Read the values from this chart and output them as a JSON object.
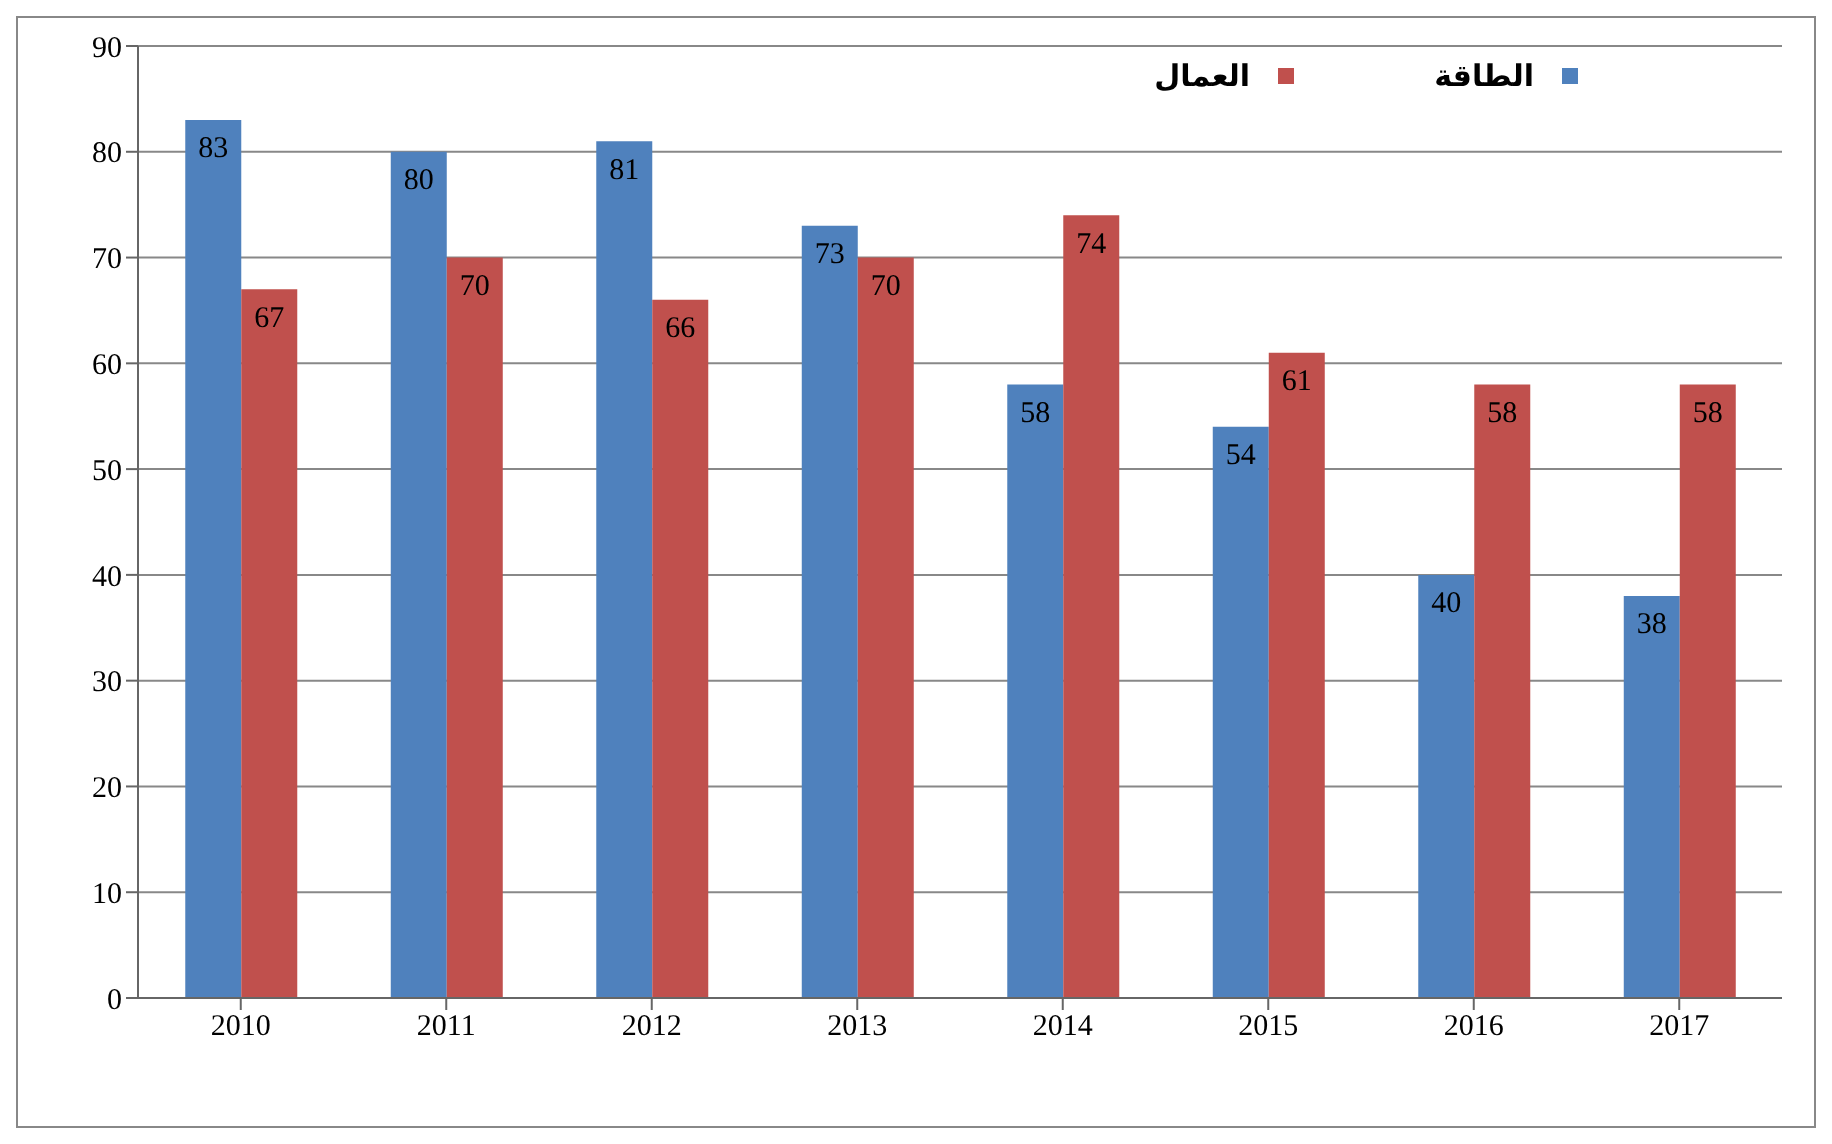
{
  "chart_data": {
    "type": "bar",
    "categories": [
      "2010",
      "2011",
      "2012",
      "2013",
      "2014",
      "2015",
      "2016",
      "2017"
    ],
    "series": [
      {
        "name": "الطاقة",
        "color": "#4f81bd",
        "values": [
          83,
          80,
          81,
          73,
          58,
          54,
          40,
          38
        ]
      },
      {
        "name": "العمال",
        "color": "#c0504d",
        "values": [
          67,
          70,
          66,
          70,
          74,
          61,
          58,
          58
        ]
      }
    ],
    "ylim": [
      0,
      90
    ],
    "yticks": [
      0,
      10,
      20,
      30,
      40,
      50,
      60,
      70,
      80,
      90
    ],
    "grid": "y",
    "legend": "top right",
    "data_labels": true
  }
}
